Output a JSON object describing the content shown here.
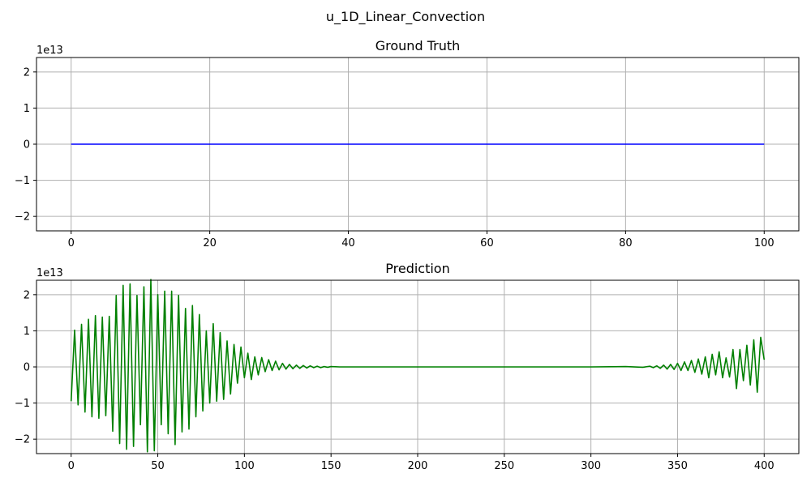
{
  "chart_data": {
    "title": "u_1D_Linear_Convection",
    "charts": [
      {
        "type": "line",
        "title": "Ground Truth",
        "xlim": [
          -5,
          105
        ],
        "ylim": [
          -2.4,
          2.4
        ],
        "y_offset_label": "1e13",
        "xticks": [
          0,
          20,
          40,
          60,
          80,
          100
        ],
        "yticks": [
          -2,
          -1,
          0,
          1,
          2
        ],
        "grid": true,
        "series": [
          {
            "color": "#0000ff",
            "x": [
              0,
              100
            ],
            "y": [
              0,
              0
            ]
          }
        ]
      },
      {
        "type": "line",
        "title": "Prediction",
        "xlim": [
          -20,
          420
        ],
        "ylim": [
          -2.4,
          2.4
        ],
        "y_offset_label": "1e13",
        "xticks": [
          0,
          50,
          100,
          150,
          200,
          250,
          300,
          350,
          400
        ],
        "yticks": [
          -2,
          -1,
          0,
          1,
          2
        ],
        "grid": true,
        "series": [
          {
            "color": "#008000",
            "x": [
              0,
              2,
              4,
              6,
              8,
              10,
              12,
              14,
              16,
              18,
              20,
              22,
              24,
              26,
              28,
              30,
              32,
              34,
              36,
              38,
              40,
              42,
              44,
              46,
              48,
              50,
              52,
              54,
              56,
              58,
              60,
              62,
              64,
              66,
              68,
              70,
              72,
              74,
              76,
              78,
              80,
              82,
              84,
              86,
              88,
              90,
              92,
              94,
              96,
              98,
              100,
              102,
              104,
              106,
              108,
              110,
              112,
              114,
              116,
              118,
              120,
              122,
              124,
              126,
              128,
              130,
              132,
              134,
              136,
              138,
              140,
              142,
              144,
              146,
              148,
              150,
              155,
              160,
              200,
              250,
              300,
              320,
              330,
              334,
              336,
              338,
              340,
              342,
              344,
              346,
              348,
              350,
              352,
              354,
              356,
              358,
              360,
              362,
              364,
              366,
              368,
              370,
              372,
              374,
              376,
              378,
              380,
              382,
              384,
              386,
              388,
              390,
              392,
              394,
              396,
              398,
              400
            ],
            "y": [
              -0.95,
              1.02,
              -1.05,
              1.18,
              -1.25,
              1.32,
              -1.38,
              1.42,
              -1.42,
              1.38,
              -1.35,
              1.4,
              -1.78,
              1.98,
              -2.12,
              2.26,
              -2.28,
              2.3,
              -2.2,
              1.98,
              -1.6,
              2.22,
              -2.35,
              2.42,
              -2.32,
              2.0,
              -1.6,
              2.1,
              -1.85,
              2.1,
              -2.15,
              1.98,
              -1.8,
              1.62,
              -1.72,
              1.7,
              -1.38,
              1.45,
              -1.22,
              1.0,
              -1.0,
              1.2,
              -0.95,
              0.95,
              -0.9,
              0.72,
              -0.75,
              0.62,
              -0.45,
              0.55,
              -0.3,
              0.38,
              -0.35,
              0.28,
              -0.22,
              0.26,
              -0.13,
              0.2,
              -0.1,
              0.16,
              -0.08,
              0.1,
              -0.06,
              0.07,
              -0.05,
              0.05,
              -0.04,
              0.04,
              -0.03,
              0.03,
              -0.02,
              0.02,
              -0.02,
              0.01,
              -0.01,
              0.01,
              0.0,
              0.0,
              0.0,
              0.0,
              0.0,
              0.01,
              -0.01,
              0.02,
              -0.02,
              0.03,
              -0.04,
              0.05,
              -0.06,
              0.07,
              -0.07,
              0.1,
              -0.1,
              0.14,
              -0.1,
              0.18,
              -0.15,
              0.22,
              -0.2,
              0.28,
              -0.3,
              0.35,
              -0.22,
              0.42,
              -0.3,
              0.25,
              -0.28,
              0.48,
              -0.6,
              0.48,
              -0.38,
              0.6,
              -0.5,
              0.75,
              -0.7,
              0.82,
              0.2
            ]
          }
        ]
      }
    ]
  }
}
